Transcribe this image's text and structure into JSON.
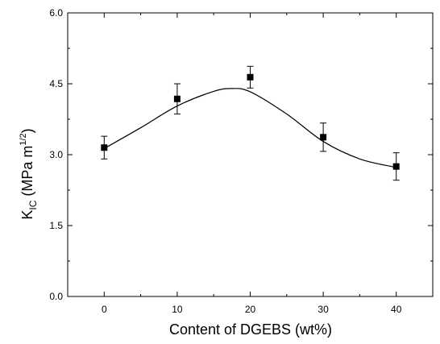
{
  "chart_data": {
    "type": "scatter",
    "title": "",
    "xlabel": "Content of DGEBS (wt%)",
    "ylabel": {
      "main": "K",
      "sub": "IC",
      "units_open": " (MPa m",
      "units_sup": "1/2",
      "units_close": ")"
    },
    "xlim": [
      -5,
      45
    ],
    "ylim": [
      0,
      6
    ],
    "x_ticks": [
      0,
      10,
      20,
      30,
      40
    ],
    "y_ticks": [
      0.0,
      1.5,
      3.0,
      4.5,
      6.0
    ],
    "x_tick_labels": [
      "0",
      "10",
      "20",
      "30",
      "40"
    ],
    "y_tick_labels": [
      "0.0",
      "1.5",
      "3.0",
      "4.5",
      "6.0"
    ],
    "grid": false,
    "legend": "none",
    "series": [
      {
        "marker": "square",
        "color": "#000000",
        "points": [
          {
            "x": 0,
            "y": 3.15,
            "err": 0.24
          },
          {
            "x": 10,
            "y": 4.18,
            "err": 0.32
          },
          {
            "x": 20,
            "y": 4.64,
            "err": 0.23
          },
          {
            "x": 30,
            "y": 3.37,
            "err": 0.3
          },
          {
            "x": 40,
            "y": 2.75,
            "err": 0.29
          }
        ]
      }
    ],
    "fit_curve": {
      "color": "#000000",
      "points": [
        [
          0,
          3.13
        ],
        [
          5,
          3.57
        ],
        [
          10,
          4.03
        ],
        [
          15,
          4.34
        ],
        [
          17.5,
          4.4
        ],
        [
          20,
          4.33
        ],
        [
          25,
          3.86
        ],
        [
          30,
          3.28
        ],
        [
          35,
          2.91
        ],
        [
          40,
          2.73
        ]
      ]
    }
  }
}
